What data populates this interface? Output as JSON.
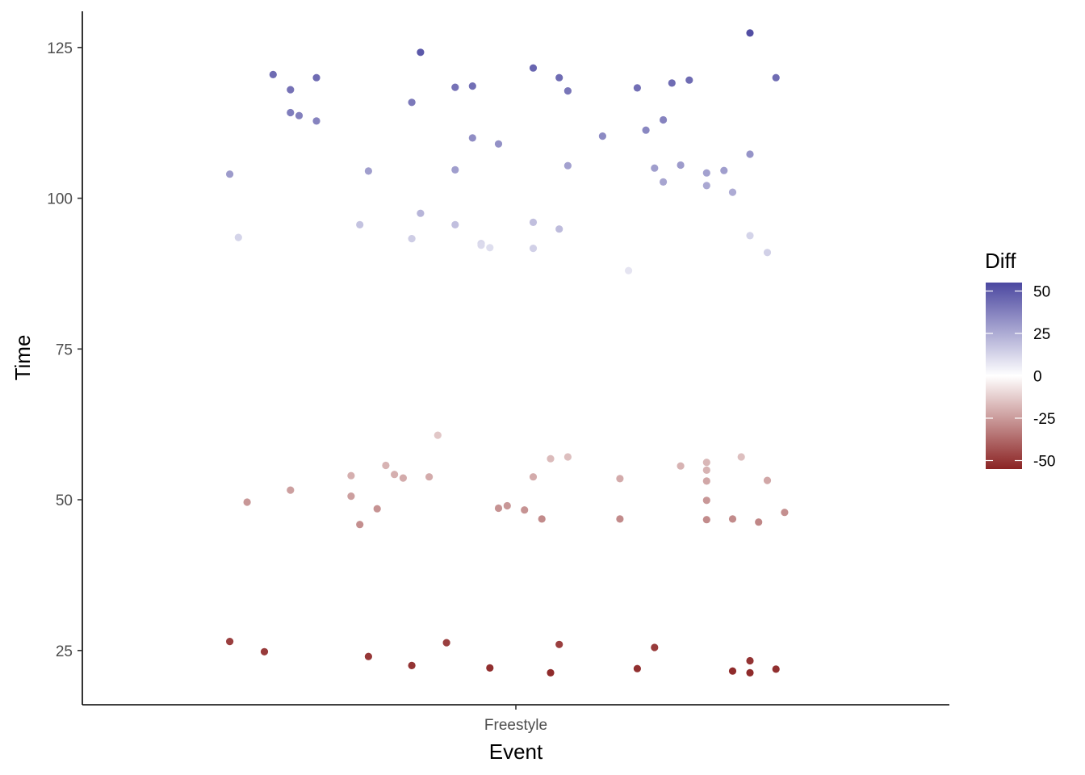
{
  "chart_data": {
    "type": "scatter",
    "xlabel": "Event",
    "ylabel": "Time",
    "x_categories": [
      "Freestyle"
    ],
    "yticks": [
      25,
      50,
      75,
      100,
      125
    ],
    "ylim": [
      16,
      131
    ],
    "jitter_xlim": [
      -0.5,
      0.5
    ],
    "grid": false,
    "legend": {
      "title": "Diff",
      "position": "right",
      "type": "gradient",
      "breaks": [
        50,
        25,
        0,
        -25,
        -50
      ],
      "range": [
        -55,
        55
      ],
      "colors": {
        "low": "#8B2323",
        "mid": "#FFFFFF",
        "high": "#4B47A0"
      }
    },
    "points": [
      {
        "jitter": -0.33,
        "time": 104.0,
        "diff": 30
      },
      {
        "jitter": -0.32,
        "time": 93.5,
        "diff": 13
      },
      {
        "jitter": -0.28,
        "time": 120.5,
        "diff": 44
      },
      {
        "jitter": -0.26,
        "time": 118.0,
        "diff": 42
      },
      {
        "jitter": -0.26,
        "time": 114.2,
        "diff": 39
      },
      {
        "jitter": -0.25,
        "time": 113.7,
        "diff": 38
      },
      {
        "jitter": -0.23,
        "time": 120.0,
        "diff": 44
      },
      {
        "jitter": -0.23,
        "time": 112.8,
        "diff": 37
      },
      {
        "jitter": -0.18,
        "time": 95.6,
        "diff": 18
      },
      {
        "jitter": -0.17,
        "time": 104.5,
        "diff": 29
      },
      {
        "jitter": -0.12,
        "time": 93.3,
        "diff": 15
      },
      {
        "jitter": -0.12,
        "time": 115.9,
        "diff": 40
      },
      {
        "jitter": -0.11,
        "time": 97.5,
        "diff": 22
      },
      {
        "jitter": -0.11,
        "time": 124.2,
        "diff": 50
      },
      {
        "jitter": -0.07,
        "time": 118.4,
        "diff": 42
      },
      {
        "jitter": -0.07,
        "time": 104.7,
        "diff": 29
      },
      {
        "jitter": -0.07,
        "time": 95.6,
        "diff": 19
      },
      {
        "jitter": -0.05,
        "time": 118.6,
        "diff": 43
      },
      {
        "jitter": -0.05,
        "time": 110.0,
        "diff": 34
      },
      {
        "jitter": -0.04,
        "time": 92.5,
        "diff": 12
      },
      {
        "jitter": -0.04,
        "time": 92.2,
        "diff": 11
      },
      {
        "jitter": -0.03,
        "time": 91.8,
        "diff": 10
      },
      {
        "jitter": -0.02,
        "time": 109.0,
        "diff": 33
      },
      {
        "jitter": 0.02,
        "time": 91.7,
        "diff": 14
      },
      {
        "jitter": 0.02,
        "time": 96.0,
        "diff": 19
      },
      {
        "jitter": 0.02,
        "time": 121.6,
        "diff": 46
      },
      {
        "jitter": 0.05,
        "time": 120.0,
        "diff": 44
      },
      {
        "jitter": 0.05,
        "time": 94.9,
        "diff": 20
      },
      {
        "jitter": 0.06,
        "time": 117.8,
        "diff": 41
      },
      {
        "jitter": 0.06,
        "time": 105.4,
        "diff": 28
      },
      {
        "jitter": 0.1,
        "time": 110.3,
        "diff": 35
      },
      {
        "jitter": 0.13,
        "time": 88.0,
        "diff": 8
      },
      {
        "jitter": 0.14,
        "time": 118.3,
        "diff": 43
      },
      {
        "jitter": 0.15,
        "time": 111.3,
        "diff": 36
      },
      {
        "jitter": 0.16,
        "time": 105.0,
        "diff": 29
      },
      {
        "jitter": 0.17,
        "time": 102.7,
        "diff": 27
      },
      {
        "jitter": 0.17,
        "time": 113.0,
        "diff": 37
      },
      {
        "jitter": 0.18,
        "time": 119.1,
        "diff": 44
      },
      {
        "jitter": 0.19,
        "time": 105.5,
        "diff": 30
      },
      {
        "jitter": 0.2,
        "time": 119.6,
        "diff": 44
      },
      {
        "jitter": 0.22,
        "time": 104.2,
        "diff": 28
      },
      {
        "jitter": 0.22,
        "time": 102.1,
        "diff": 26
      },
      {
        "jitter": 0.24,
        "time": 104.6,
        "diff": 29
      },
      {
        "jitter": 0.25,
        "time": 101.0,
        "diff": 25
      },
      {
        "jitter": 0.27,
        "time": 107.3,
        "diff": 32
      },
      {
        "jitter": 0.27,
        "time": 127.4,
        "diff": 53
      },
      {
        "jitter": 0.27,
        "time": 93.8,
        "diff": 13
      },
      {
        "jitter": 0.29,
        "time": 91.0,
        "diff": 14
      },
      {
        "jitter": 0.3,
        "time": 120.0,
        "diff": 44
      },
      {
        "jitter": -0.31,
        "time": 49.6,
        "diff": -26
      },
      {
        "jitter": -0.26,
        "time": 51.6,
        "diff": -24
      },
      {
        "jitter": -0.19,
        "time": 54.0,
        "diff": -20
      },
      {
        "jitter": -0.19,
        "time": 50.6,
        "diff": -24
      },
      {
        "jitter": -0.18,
        "time": 45.9,
        "diff": -28
      },
      {
        "jitter": -0.16,
        "time": 48.5,
        "diff": -27
      },
      {
        "jitter": -0.15,
        "time": 55.7,
        "diff": -19
      },
      {
        "jitter": -0.14,
        "time": 54.2,
        "diff": -20
      },
      {
        "jitter": -0.13,
        "time": 53.6,
        "diff": -21
      },
      {
        "jitter": -0.1,
        "time": 53.8,
        "diff": -21
      },
      {
        "jitter": -0.09,
        "time": 60.7,
        "diff": -14
      },
      {
        "jitter": -0.02,
        "time": 48.6,
        "diff": -27
      },
      {
        "jitter": -0.01,
        "time": 49.0,
        "diff": -26
      },
      {
        "jitter": 0.01,
        "time": 48.3,
        "diff": -27
      },
      {
        "jitter": 0.02,
        "time": 53.8,
        "diff": -21
      },
      {
        "jitter": 0.03,
        "time": 46.8,
        "diff": -29
      },
      {
        "jitter": 0.04,
        "time": 56.8,
        "diff": -17
      },
      {
        "jitter": 0.06,
        "time": 57.1,
        "diff": -16
      },
      {
        "jitter": 0.12,
        "time": 53.5,
        "diff": -21
      },
      {
        "jitter": 0.12,
        "time": 46.8,
        "diff": -29
      },
      {
        "jitter": 0.19,
        "time": 55.6,
        "diff": -19
      },
      {
        "jitter": 0.22,
        "time": 56.2,
        "diff": -18
      },
      {
        "jitter": 0.22,
        "time": 54.9,
        "diff": -19
      },
      {
        "jitter": 0.22,
        "time": 53.1,
        "diff": -22
      },
      {
        "jitter": 0.22,
        "time": 49.9,
        "diff": -26
      },
      {
        "jitter": 0.22,
        "time": 46.7,
        "diff": -29
      },
      {
        "jitter": 0.25,
        "time": 46.8,
        "diff": -29
      },
      {
        "jitter": 0.26,
        "time": 57.1,
        "diff": -16
      },
      {
        "jitter": 0.28,
        "time": 46.3,
        "diff": -30
      },
      {
        "jitter": 0.29,
        "time": 53.2,
        "diff": -22
      },
      {
        "jitter": 0.31,
        "time": 47.9,
        "diff": -28
      },
      {
        "jitter": -0.33,
        "time": 26.5,
        "diff": -48
      },
      {
        "jitter": -0.29,
        "time": 24.8,
        "diff": -49
      },
      {
        "jitter": -0.17,
        "time": 24.0,
        "diff": -50
      },
      {
        "jitter": -0.12,
        "time": 22.5,
        "diff": -51
      },
      {
        "jitter": -0.08,
        "time": 26.3,
        "diff": -48
      },
      {
        "jitter": -0.03,
        "time": 22.1,
        "diff": -52
      },
      {
        "jitter": 0.04,
        "time": 21.3,
        "diff": -53
      },
      {
        "jitter": 0.05,
        "time": 26.0,
        "diff": -48
      },
      {
        "jitter": 0.14,
        "time": 22.0,
        "diff": -52
      },
      {
        "jitter": 0.16,
        "time": 25.5,
        "diff": -49
      },
      {
        "jitter": 0.25,
        "time": 21.6,
        "diff": -53
      },
      {
        "jitter": 0.27,
        "time": 21.3,
        "diff": -53
      },
      {
        "jitter": 0.27,
        "time": 23.3,
        "diff": -51
      },
      {
        "jitter": 0.3,
        "time": 21.9,
        "diff": -52
      }
    ]
  }
}
